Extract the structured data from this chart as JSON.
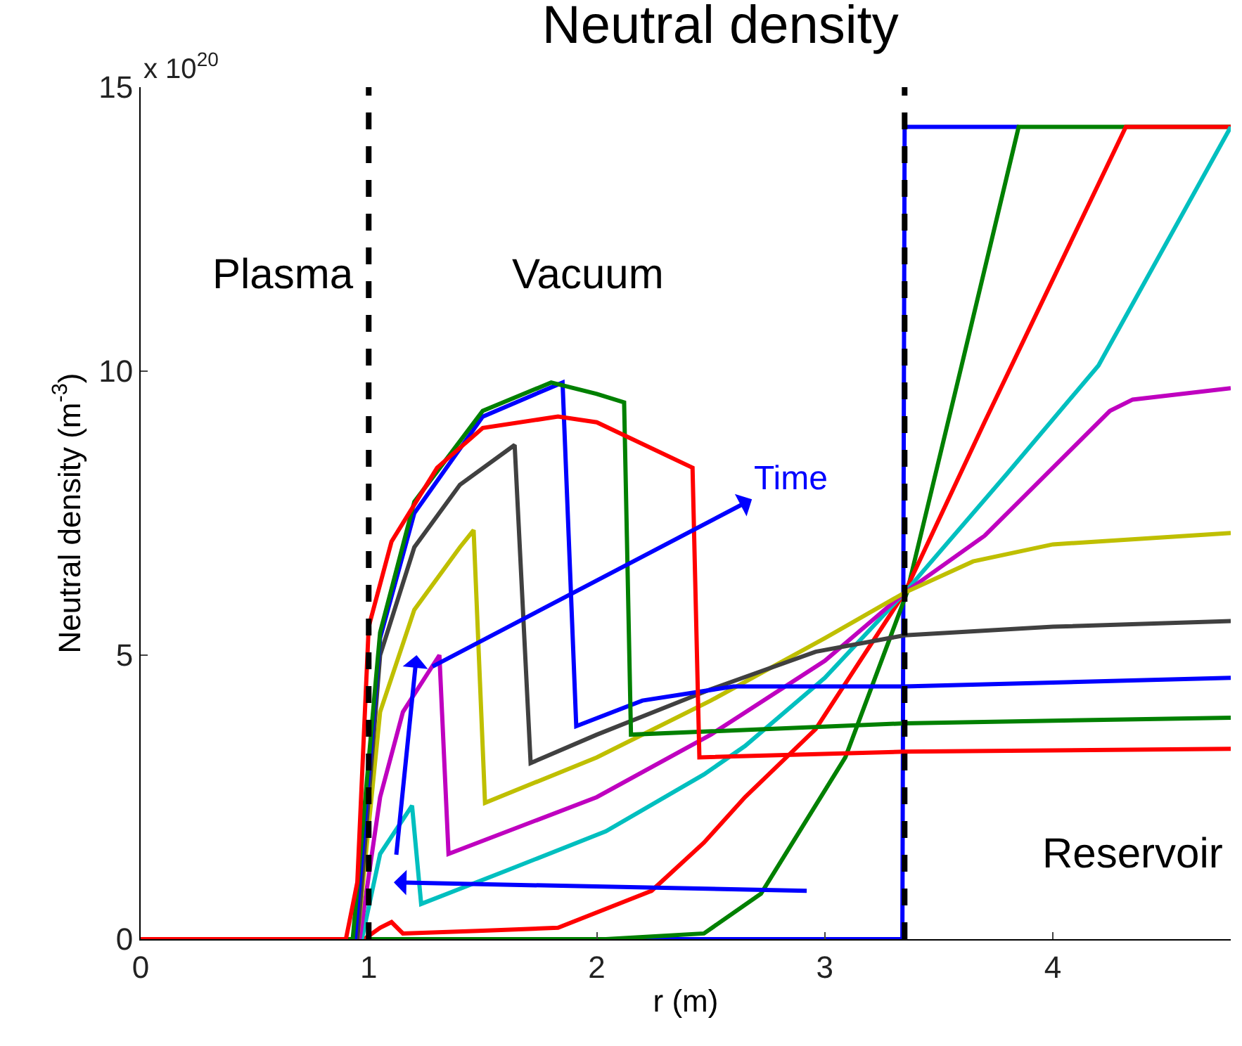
{
  "chart_data": {
    "type": "line",
    "title": "Neutral density",
    "xlabel": "r (m)",
    "ylabel": "Neutral density (m$^{-3}$)",
    "xlim": [
      0,
      4.78
    ],
    "ylim": [
      0,
      15
    ],
    "xticks": [
      0,
      1,
      2,
      3,
      4
    ],
    "yticks": [
      0,
      5,
      10,
      15
    ],
    "marker": "none",
    "line_style": "solid",
    "ref_lines": [
      {
        "axis": "x",
        "value": 1,
        "color": "#000000",
        "line_style": "dashed"
      },
      {
        "axis": "x",
        "value": 3.35,
        "color": "#000000",
        "line_style": "dashed"
      }
    ],
    "annotations": [
      "x 10$^{20}$",
      "Plasma",
      "Vacuum",
      "Reservoir",
      "Time"
    ],
    "series": [
      {
        "color": "#0000ff",
        "x": [
          0,
          3.34,
          3.35,
          3.85
        ],
        "values": [
          0,
          0,
          14.3,
          14.3
        ]
      },
      {
        "color": "#008000",
        "x": [
          0,
          2.04,
          2.47,
          2.72,
          3.09,
          3.36,
          3.6,
          3.85,
          4.78
        ],
        "values": [
          0,
          0,
          0.1,
          0.8,
          3.2,
          6.1,
          10.1,
          14.3,
          14.3
        ]
      },
      {
        "color": "#ff0000",
        "x": [
          0,
          0.98,
          1.05,
          1.1,
          1.15,
          1.5,
          1.83,
          2.24,
          2.47,
          2.65,
          2.96,
          3.35,
          3.7,
          4.32,
          4.78
        ],
        "values": [
          0,
          0,
          0.2,
          0.3,
          0.1,
          0.15,
          0.2,
          0.85,
          1.7,
          2.5,
          3.7,
          6.1,
          9.1,
          14.3,
          14.3
        ]
      },
      {
        "color": "#00bfbf",
        "x": [
          0,
          0.97,
          1.05,
          1.19,
          1.23,
          1.6,
          2.04,
          2.47,
          2.65,
          3.0,
          3.35,
          3.8,
          4.2,
          4.78
        ],
        "values": [
          0,
          0,
          1.5,
          2.35,
          0.62,
          1.2,
          1.9,
          2.9,
          3.4,
          4.6,
          6.1,
          8.2,
          10.1,
          14.3
        ]
      },
      {
        "color": "#bf00bf",
        "x": [
          0,
          0.96,
          1.05,
          1.15,
          1.31,
          1.35,
          2.0,
          2.5,
          3.0,
          3.35,
          3.7,
          4.25,
          4.35,
          4.78
        ],
        "values": [
          0,
          0,
          2.5,
          4.0,
          5.0,
          1.5,
          2.5,
          3.6,
          4.9,
          6.1,
          7.1,
          9.3,
          9.5,
          9.7
        ]
      },
      {
        "color": "#bfbf00",
        "x": [
          0,
          0.95,
          1.05,
          1.2,
          1.4,
          1.46,
          1.51,
          2.0,
          2.5,
          3.0,
          3.35,
          3.65,
          4.0,
          4.78
        ],
        "values": [
          0,
          0,
          4.0,
          5.8,
          6.9,
          7.2,
          2.4,
          3.2,
          4.2,
          5.3,
          6.1,
          6.65,
          6.95,
          7.15
        ]
      },
      {
        "color": "#404040",
        "x": [
          0,
          0.95,
          1.05,
          1.2,
          1.4,
          1.64,
          1.71,
          2.0,
          2.5,
          2.96,
          3.35,
          4.0,
          4.78
        ],
        "values": [
          0,
          0,
          5.0,
          6.9,
          8.0,
          8.7,
          3.1,
          3.6,
          4.4,
          5.06,
          5.35,
          5.5,
          5.6
        ]
      },
      {
        "color": "#0000ff",
        "x": [
          0,
          0.94,
          1.05,
          1.2,
          1.5,
          1.85,
          1.91,
          2.2,
          2.6,
          3.35,
          4.78
        ],
        "values": [
          0,
          0,
          5.3,
          7.5,
          9.2,
          9.8,
          3.75,
          4.2,
          4.45,
          4.45,
          4.6
        ]
      },
      {
        "color": "#008000",
        "x": [
          0,
          0.93,
          1.05,
          1.2,
          1.5,
          1.8,
          2.0,
          2.12,
          2.15,
          3.35,
          4.78
        ],
        "values": [
          0,
          0,
          5.4,
          7.7,
          9.3,
          9.8,
          9.6,
          9.45,
          3.6,
          3.8,
          3.9
        ]
      },
      {
        "color": "#ff0000",
        "x": [
          0,
          0.9,
          0.95,
          1.0,
          1.1,
          1.3,
          1.5,
          1.83,
          2.0,
          2.42,
          2.45,
          3.35,
          4.78
        ],
        "values": [
          0,
          0,
          1.0,
          5.5,
          7.0,
          8.3,
          9.0,
          9.2,
          9.1,
          8.3,
          3.2,
          3.3,
          3.35
        ]
      }
    ]
  }
}
